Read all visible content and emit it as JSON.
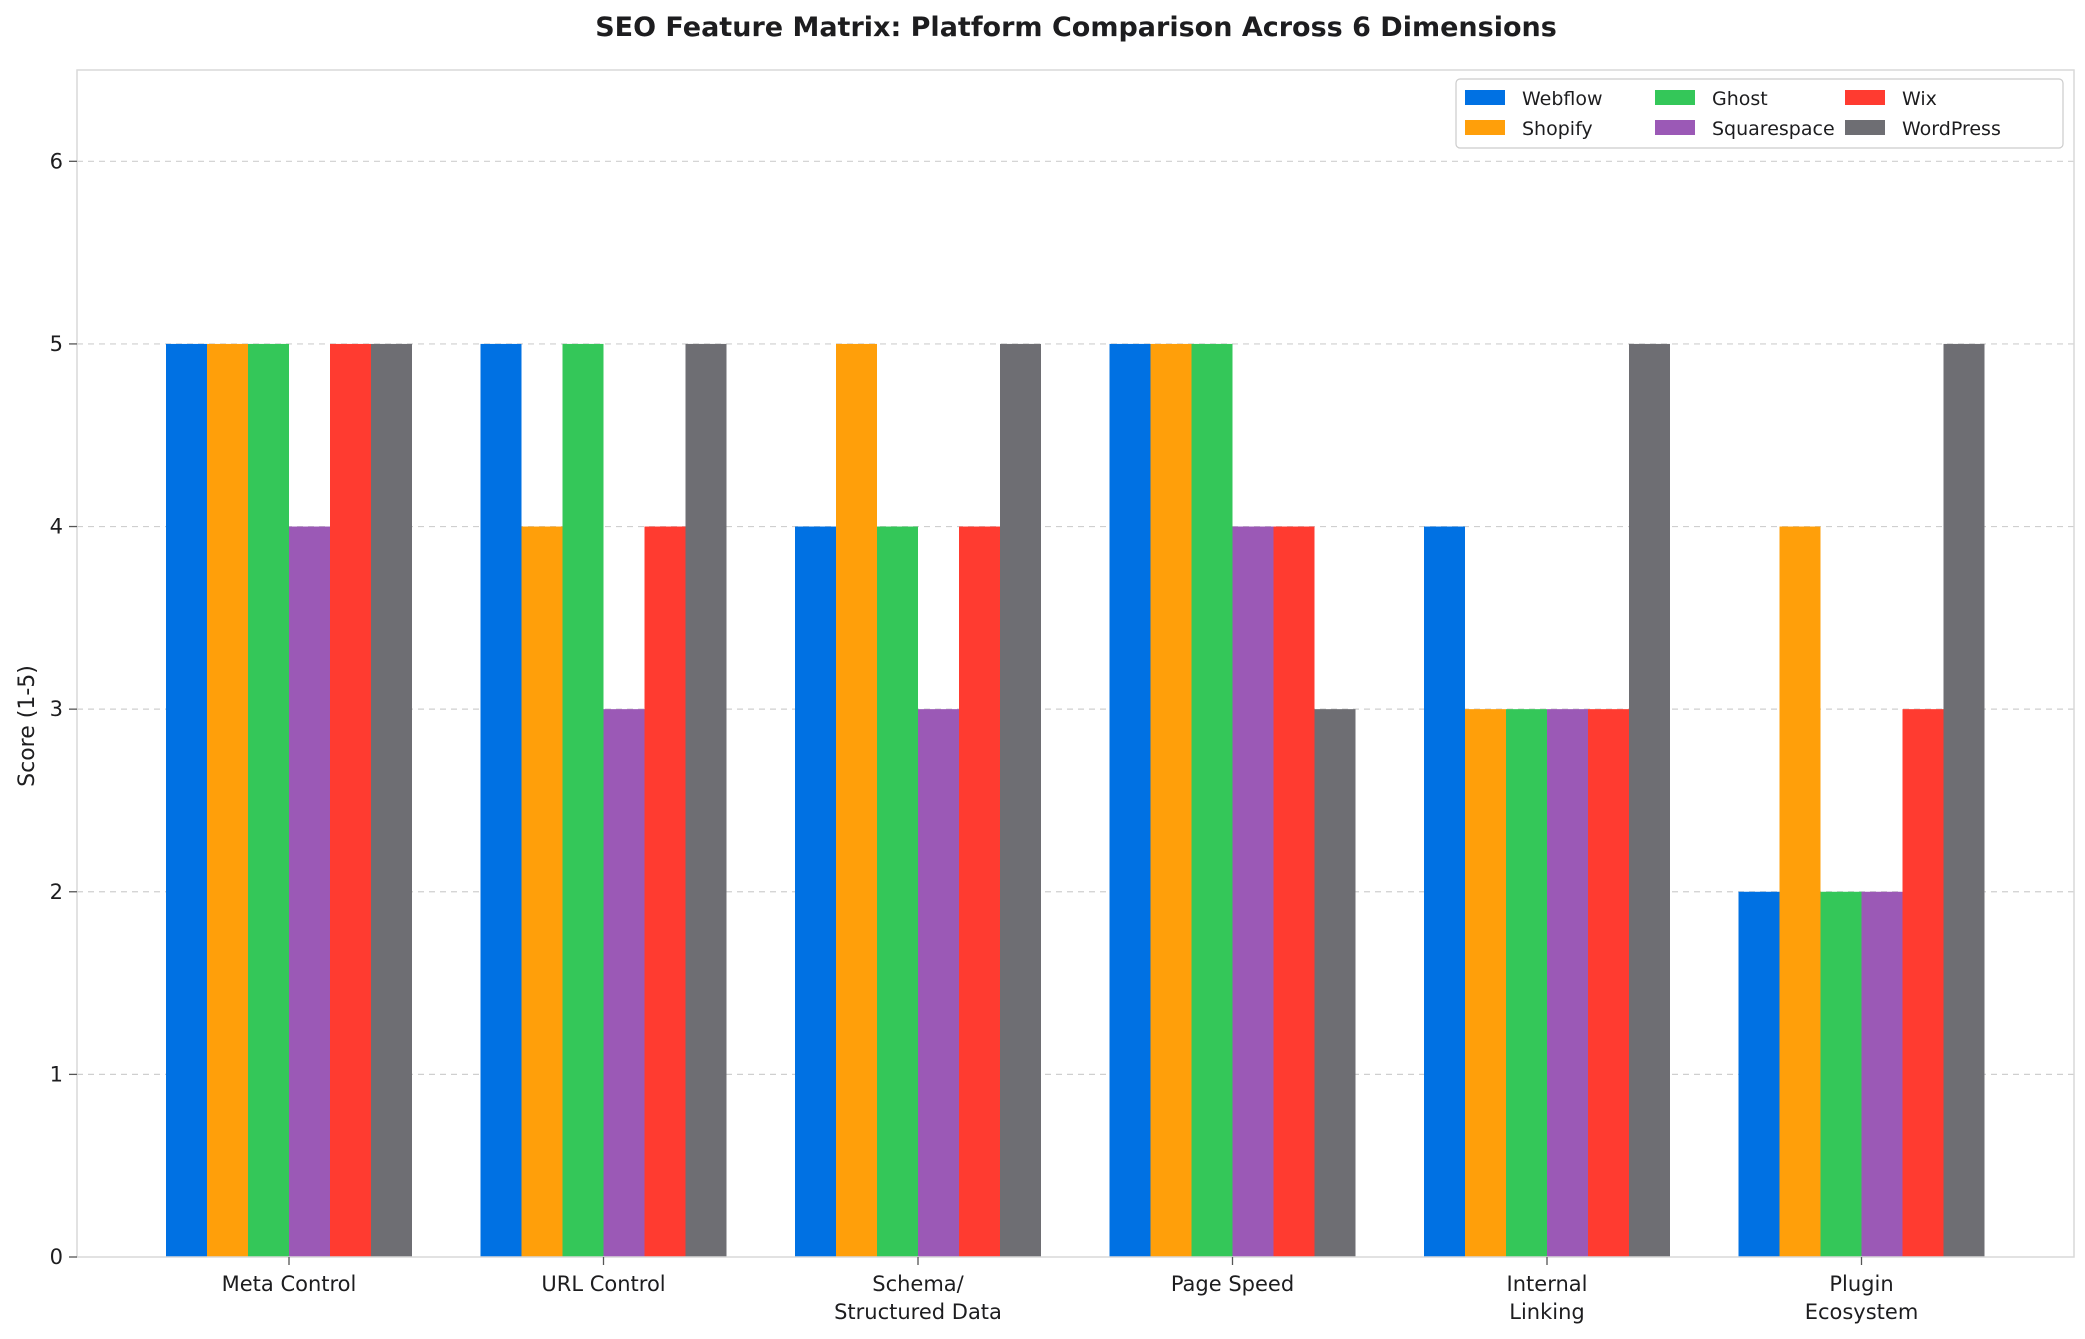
{
  "chart_data": {
    "type": "bar",
    "title": "SEO Feature Matrix: Platform Comparison Across 6 Dimensions",
    "xlabel": "",
    "ylabel": "Score (1-5)",
    "ylim": [
      0,
      6.5
    ],
    "yticks": [
      0,
      1,
      2,
      3,
      4,
      5,
      6
    ],
    "grid": "y-dashed",
    "legend_position": "top-right",
    "categories": [
      [
        "Meta Control"
      ],
      [
        "URL Control"
      ],
      [
        "Schema/",
        "Structured Data"
      ],
      [
        "Page Speed"
      ],
      [
        "Internal",
        "Linking"
      ],
      [
        "Plugin",
        "Ecosystem"
      ]
    ],
    "series": [
      {
        "name": "Webflow",
        "color": "#0071e3",
        "values": [
          5,
          5,
          4,
          5,
          4,
          2
        ]
      },
      {
        "name": "Shopify",
        "color": "#ff9f0a",
        "values": [
          5,
          4,
          5,
          5,
          3,
          4
        ]
      },
      {
        "name": "Ghost",
        "color": "#34c759",
        "values": [
          5,
          5,
          4,
          5,
          3,
          2
        ]
      },
      {
        "name": "Squarespace",
        "color": "#9b59b6",
        "values": [
          4,
          3,
          3,
          4,
          3,
          2
        ]
      },
      {
        "name": "Wix",
        "color": "#ff3b30",
        "values": [
          5,
          4,
          4,
          4,
          3,
          3
        ]
      },
      {
        "name": "WordPress",
        "color": "#6e6e73",
        "values": [
          5,
          5,
          5,
          3,
          5,
          5
        ]
      }
    ]
  }
}
